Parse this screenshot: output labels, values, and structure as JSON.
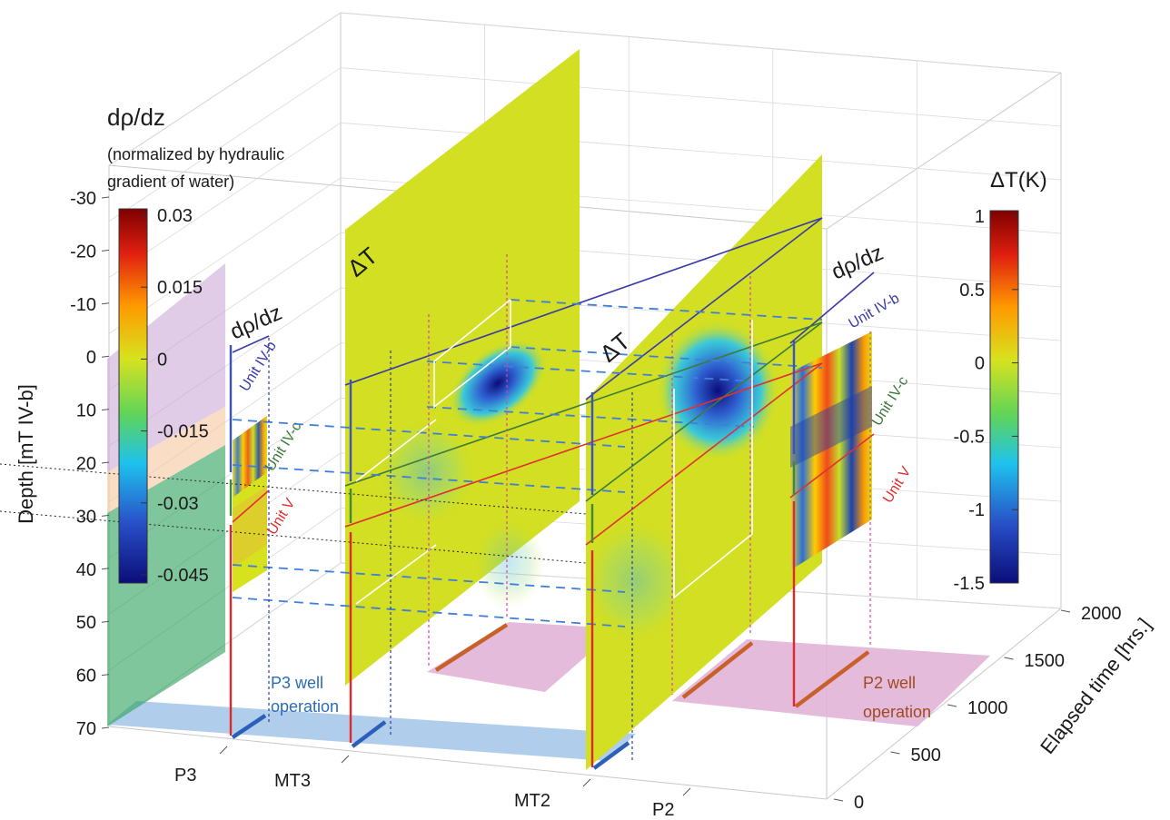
{
  "chart_data": {
    "type": "heatmap",
    "colorbars": [
      {
        "title": "dρ/dz",
        "subtitle": [
          "(normalized by hydraulic",
          "gradient of water)"
        ],
        "ticks": [
          "0.03",
          "0.015",
          "0",
          "-0.015",
          "-0.03",
          "-0.045"
        ],
        "range": [
          -0.045,
          0.03
        ]
      },
      {
        "title": "ΔT(K)",
        "ticks": [
          "1",
          "0.5",
          "0",
          "-0.5",
          "-1",
          "-1.5"
        ],
        "range": [
          -1.5,
          1
        ]
      }
    ],
    "depth_axis": {
      "label": "Depth [mT IV-b]",
      "ticks": [
        "-30",
        "-20",
        "-10",
        "0",
        "10",
        "20",
        "30",
        "40",
        "50",
        "60",
        "70"
      ],
      "range": [
        -30,
        70
      ]
    },
    "time_axis": {
      "label": "Elapsed time [hrs.]",
      "ticks": [
        "0",
        "500",
        "1000",
        "1500",
        "2000"
      ],
      "range": [
        0,
        2000
      ]
    },
    "wells": [
      "P3",
      "MT3",
      "MT2",
      "P2"
    ],
    "panel_labels": [
      "dρ/dz",
      "ΔT",
      "ΔT",
      "dρ/dz"
    ],
    "units": [
      {
        "name": "Unit IV-b",
        "color": "#3a3aa8",
        "depth": 0
      },
      {
        "name": "Unit IV-c",
        "color": "#3e7a3a",
        "depth": 22
      },
      {
        "name": "Unit V",
        "color": "#e03030",
        "depth": 31
      }
    ],
    "operations": [
      {
        "well": "P3",
        "label": [
          "P3 well",
          "operation"
        ],
        "color": "#a7c8ea"
      },
      {
        "well": "P2",
        "label": [
          "P2 well",
          "operation"
        ],
        "color": "#e2b4d8"
      }
    ]
  }
}
